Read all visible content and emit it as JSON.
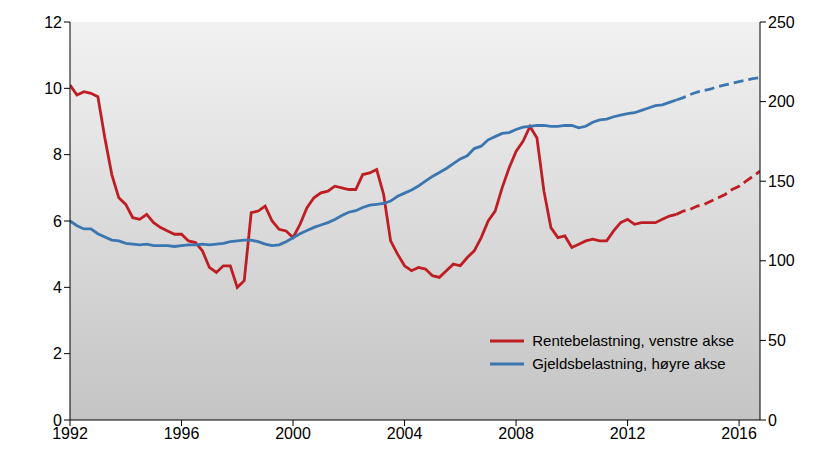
{
  "chart_data": {
    "type": "line",
    "x": [
      1992,
      1992.25,
      1992.5,
      1992.75,
      1993,
      1993.25,
      1993.5,
      1993.75,
      1994,
      1994.25,
      1994.5,
      1994.75,
      1995,
      1995.25,
      1995.5,
      1995.75,
      1996,
      1996.25,
      1996.5,
      1996.75,
      1997,
      1997.25,
      1997.5,
      1997.75,
      1998,
      1998.25,
      1998.5,
      1998.75,
      1999,
      1999.25,
      1999.5,
      1999.75,
      2000,
      2000.25,
      2000.5,
      2000.75,
      2001,
      2001.25,
      2001.5,
      2001.75,
      2002,
      2002.25,
      2002.5,
      2002.75,
      2003,
      2003.25,
      2003.5,
      2003.75,
      2004,
      2004.25,
      2004.5,
      2004.75,
      2005,
      2005.25,
      2005.5,
      2005.75,
      2006,
      2006.25,
      2006.5,
      2006.75,
      2007,
      2007.25,
      2007.5,
      2007.75,
      2008,
      2008.25,
      2008.5,
      2008.75,
      2009,
      2009.25,
      2009.5,
      2009.75,
      2010,
      2010.25,
      2010.5,
      2010.75,
      2011,
      2011.25,
      2011.5,
      2011.75,
      2012,
      2012.25,
      2012.5,
      2012.75,
      2013,
      2013.25,
      2013.5,
      2013.75,
      2014,
      2014.25,
      2014.5,
      2014.75,
      2015,
      2015.25,
      2015.5,
      2015.75,
      2016,
      2016.25,
      2016.5,
      2016.75
    ],
    "xlim": [
      1992,
      2016.75
    ],
    "xticks": [
      1992,
      1996,
      2000,
      2004,
      2008,
      2012,
      2016
    ],
    "ylim": [
      0,
      12
    ],
    "yticks": [
      0,
      2,
      4,
      6,
      8,
      10,
      12
    ],
    "y2lim": [
      0,
      250
    ],
    "y2ticks": [
      0,
      50,
      100,
      150,
      200,
      250
    ],
    "grid": false,
    "legend": "lower right",
    "series": [
      {
        "name": "Rentebelastning, venstre akse",
        "color": "#be1e23",
        "line_style": "solid",
        "axis": "y",
        "values": [
          10.1,
          9.8,
          9.9,
          9.85,
          9.75,
          8.5,
          7.4,
          6.7,
          6.5,
          6.1,
          6.05,
          6.2,
          5.95,
          5.8,
          5.7,
          5.6,
          5.6,
          5.4,
          5.35,
          5.1,
          4.6,
          4.45,
          4.65,
          4.65,
          4.0,
          4.2,
          6.25,
          6.3,
          6.45,
          6.0,
          5.75,
          5.7,
          5.5,
          5.9,
          6.4,
          6.7,
          6.85,
          6.9,
          7.05,
          7.0,
          6.95,
          6.95,
          7.4,
          7.45,
          7.55,
          6.8,
          5.4,
          5.0,
          4.65,
          4.5,
          4.6,
          4.55,
          4.35,
          4.3,
          4.5,
          4.7,
          4.65,
          4.9,
          5.1,
          5.5,
          6.0,
          6.3,
          7.0,
          7.6,
          8.1,
          8.4,
          8.85,
          8.5,
          6.9,
          5.8,
          5.5,
          5.55,
          5.2,
          5.3,
          5.4,
          5.45,
          5.4,
          5.4,
          5.7,
          5.95,
          6.05,
          5.9,
          5.95,
          5.95,
          5.95,
          6.05,
          6.15,
          6.2,
          null,
          null,
          null,
          null,
          null,
          null,
          null,
          null,
          null,
          null,
          null,
          null
        ]
      },
      {
        "name": "Rentebelastning, venstre akse",
        "color": "#be1e23",
        "line_style": "dashed",
        "axis": "y",
        "values": [
          null,
          null,
          null,
          null,
          null,
          null,
          null,
          null,
          null,
          null,
          null,
          null,
          null,
          null,
          null,
          null,
          null,
          null,
          null,
          null,
          null,
          null,
          null,
          null,
          null,
          null,
          null,
          null,
          null,
          null,
          null,
          null,
          null,
          null,
          null,
          null,
          null,
          null,
          null,
          null,
          null,
          null,
          null,
          null,
          null,
          null,
          null,
          null,
          null,
          null,
          null,
          null,
          null,
          null,
          null,
          null,
          null,
          null,
          null,
          null,
          null,
          null,
          null,
          null,
          null,
          null,
          null,
          null,
          null,
          null,
          null,
          null,
          null,
          null,
          null,
          null,
          null,
          null,
          null,
          null,
          null,
          null,
          null,
          null,
          null,
          null,
          null,
          6.2,
          6.3,
          6.35,
          6.45,
          6.5,
          6.6,
          6.7,
          6.8,
          6.95,
          7.05,
          7.2,
          7.35,
          7.5
        ]
      },
      {
        "name": "Gjeldsbelastning, høyre akse",
        "color": "#3b76b0",
        "line_style": "solid",
        "axis": "y2",
        "values": [
          125,
          122,
          120,
          120,
          117,
          115,
          113,
          112.5,
          111,
          110.5,
          110,
          110.5,
          109.5,
          109.5,
          109.5,
          109,
          109.5,
          110,
          110,
          110.5,
          110,
          110.5,
          111,
          112,
          112.5,
          113,
          113,
          112,
          110.5,
          109.5,
          110,
          112,
          114.5,
          117,
          119,
          121,
          122.5,
          124,
          126,
          128.5,
          130.5,
          131.5,
          133.5,
          135,
          135.5,
          136,
          137.5,
          140.5,
          142.5,
          144.5,
          147,
          150,
          153,
          155.5,
          158,
          161,
          164,
          166,
          170.5,
          172,
          176,
          178,
          180,
          180.5,
          182.5,
          184,
          184.5,
          185,
          185,
          184.5,
          184.5,
          185,
          185,
          183.5,
          184.5,
          187,
          188.5,
          189,
          190.5,
          191.5,
          192.5,
          193,
          194.5,
          196,
          197.5,
          198,
          199.5,
          201,
          null,
          null,
          null,
          null,
          null,
          null,
          null,
          null,
          null,
          null,
          null,
          null
        ]
      },
      {
        "name": "Gjeldsbelastning, høyre akse",
        "color": "#3b76b0",
        "line_style": "dashed",
        "axis": "y2",
        "values": [
          null,
          null,
          null,
          null,
          null,
          null,
          null,
          null,
          null,
          null,
          null,
          null,
          null,
          null,
          null,
          null,
          null,
          null,
          null,
          null,
          null,
          null,
          null,
          null,
          null,
          null,
          null,
          null,
          null,
          null,
          null,
          null,
          null,
          null,
          null,
          null,
          null,
          null,
          null,
          null,
          null,
          null,
          null,
          null,
          null,
          null,
          null,
          null,
          null,
          null,
          null,
          null,
          null,
          null,
          null,
          null,
          null,
          null,
          null,
          null,
          null,
          null,
          null,
          null,
          null,
          null,
          null,
          null,
          null,
          null,
          null,
          null,
          null,
          null,
          null,
          null,
          null,
          null,
          null,
          null,
          null,
          null,
          null,
          null,
          null,
          null,
          null,
          201,
          202.5,
          204.5,
          206,
          207,
          208,
          209.5,
          210.5,
          211.5,
          212.5,
          213.5,
          214.5,
          215
        ]
      }
    ]
  }
}
